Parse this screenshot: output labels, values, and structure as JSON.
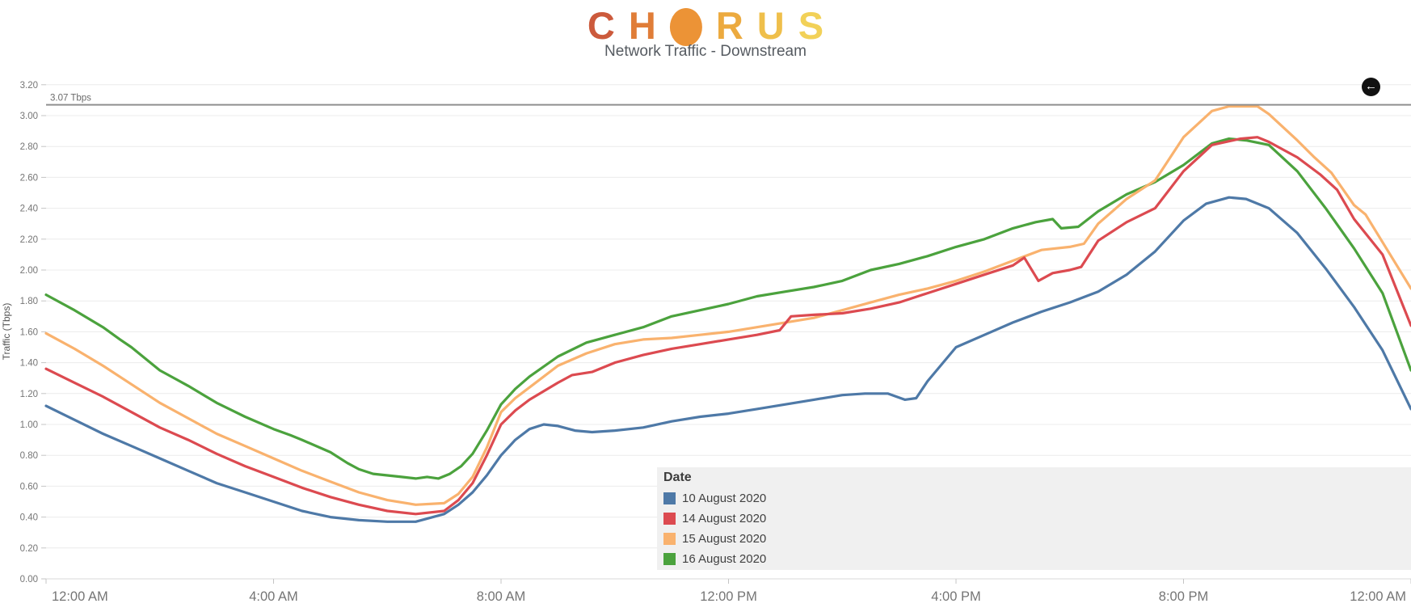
{
  "header": {
    "logo": {
      "name": "chorus-logo",
      "letters": [
        {
          "ch": "C",
          "color": "#cc5a3c"
        },
        {
          "ch": "H",
          "color": "#e07d38"
        },
        {
          "ch": "O",
          "shape": "ellipse",
          "color": "#ec9336"
        },
        {
          "ch": "R",
          "color": "#ecaa3f"
        },
        {
          "ch": "U",
          "color": "#efbf4b"
        },
        {
          "ch": "S",
          "color": "#f2d158"
        }
      ]
    },
    "subtitle": "Network Traffic - Downstream"
  },
  "back_button": {
    "glyph": "←",
    "label": "back"
  },
  "chart_data": {
    "type": "line",
    "title": "Network Traffic - Downstream",
    "xlabel": "",
    "ylabel": "Traffic (Tbps)",
    "ylim": [
      0,
      3.2
    ],
    "xlim_hours": [
      0,
      24
    ],
    "grid": "horizontal",
    "y_ticks": [
      "0.00",
      "0.20",
      "0.40",
      "0.60",
      "0.80",
      "1.00",
      "1.20",
      "1.40",
      "1.60",
      "1.80",
      "2.00",
      "2.20",
      "2.40",
      "2.60",
      "2.80",
      "3.00",
      "3.20"
    ],
    "x_ticks": [
      {
        "t": 0,
        "label": "12:00 AM"
      },
      {
        "t": 4,
        "label": "4:00 AM"
      },
      {
        "t": 8,
        "label": "8:00 AM"
      },
      {
        "t": 12,
        "label": "12:00 PM"
      },
      {
        "t": 16,
        "label": "4:00 PM"
      },
      {
        "t": 20,
        "label": "8:00 PM"
      },
      {
        "t": 24,
        "label": "12:00 AM"
      }
    ],
    "reference_line": {
      "value": 3.07,
      "label": "3.07 Tbps",
      "color": "#8f8f8f"
    },
    "legend_title": "Date",
    "legend_position": "bottom-right",
    "series": [
      {
        "name": "10 August 2020",
        "color": "#4e79a7",
        "points": [
          [
            0,
            1.12
          ],
          [
            0.5,
            1.03
          ],
          [
            1,
            0.94
          ],
          [
            1.5,
            0.86
          ],
          [
            2,
            0.78
          ],
          [
            2.5,
            0.7
          ],
          [
            3,
            0.62
          ],
          [
            3.5,
            0.56
          ],
          [
            4,
            0.5
          ],
          [
            4.5,
            0.44
          ],
          [
            5,
            0.4
          ],
          [
            5.5,
            0.38
          ],
          [
            6,
            0.37
          ],
          [
            6.5,
            0.37
          ],
          [
            7,
            0.42
          ],
          [
            7.25,
            0.48
          ],
          [
            7.5,
            0.56
          ],
          [
            7.75,
            0.67
          ],
          [
            8,
            0.8
          ],
          [
            8.25,
            0.9
          ],
          [
            8.5,
            0.97
          ],
          [
            8.75,
            1.0
          ],
          [
            9,
            0.99
          ],
          [
            9.3,
            0.96
          ],
          [
            9.6,
            0.95
          ],
          [
            10,
            0.96
          ],
          [
            10.5,
            0.98
          ],
          [
            11,
            1.02
          ],
          [
            11.5,
            1.05
          ],
          [
            12,
            1.07
          ],
          [
            12.5,
            1.1
          ],
          [
            13,
            1.13
          ],
          [
            13.5,
            1.16
          ],
          [
            14,
            1.19
          ],
          [
            14.4,
            1.2
          ],
          [
            14.8,
            1.2
          ],
          [
            15.1,
            1.16
          ],
          [
            15.3,
            1.17
          ],
          [
            15.5,
            1.28
          ],
          [
            16,
            1.5
          ],
          [
            16.5,
            1.58
          ],
          [
            17,
            1.66
          ],
          [
            17.5,
            1.73
          ],
          [
            18,
            1.79
          ],
          [
            18.5,
            1.86
          ],
          [
            19,
            1.97
          ],
          [
            19.5,
            2.12
          ],
          [
            20,
            2.32
          ],
          [
            20.4,
            2.43
          ],
          [
            20.8,
            2.47
          ],
          [
            21.1,
            2.46
          ],
          [
            21.5,
            2.4
          ],
          [
            22,
            2.24
          ],
          [
            22.5,
            2.01
          ],
          [
            23,
            1.76
          ],
          [
            23.5,
            1.48
          ],
          [
            24,
            1.1
          ]
        ]
      },
      {
        "name": "14 August 2020",
        "color": "#dc4a50",
        "points": [
          [
            0,
            1.36
          ],
          [
            0.5,
            1.27
          ],
          [
            1,
            1.18
          ],
          [
            1.5,
            1.08
          ],
          [
            2,
            0.98
          ],
          [
            2.5,
            0.9
          ],
          [
            3,
            0.81
          ],
          [
            3.5,
            0.73
          ],
          [
            4,
            0.66
          ],
          [
            4.5,
            0.59
          ],
          [
            5,
            0.53
          ],
          [
            5.5,
            0.48
          ],
          [
            6,
            0.44
          ],
          [
            6.5,
            0.42
          ],
          [
            7,
            0.44
          ],
          [
            7.25,
            0.51
          ],
          [
            7.5,
            0.62
          ],
          [
            7.75,
            0.8
          ],
          [
            8,
            1.0
          ],
          [
            8.25,
            1.09
          ],
          [
            8.5,
            1.16
          ],
          [
            9,
            1.27
          ],
          [
            9.25,
            1.32
          ],
          [
            9.6,
            1.34
          ],
          [
            10,
            1.4
          ],
          [
            10.5,
            1.45
          ],
          [
            11,
            1.49
          ],
          [
            11.5,
            1.52
          ],
          [
            12,
            1.55
          ],
          [
            12.5,
            1.58
          ],
          [
            12.9,
            1.61
          ],
          [
            13.1,
            1.7
          ],
          [
            13.5,
            1.71
          ],
          [
            14,
            1.72
          ],
          [
            14.5,
            1.75
          ],
          [
            15,
            1.79
          ],
          [
            15.5,
            1.85
          ],
          [
            16,
            1.91
          ],
          [
            16.5,
            1.97
          ],
          [
            17,
            2.03
          ],
          [
            17.2,
            2.08
          ],
          [
            17.45,
            1.93
          ],
          [
            17.7,
            1.98
          ],
          [
            18,
            2.0
          ],
          [
            18.2,
            2.02
          ],
          [
            18.5,
            2.19
          ],
          [
            19,
            2.31
          ],
          [
            19.5,
            2.4
          ],
          [
            20,
            2.64
          ],
          [
            20.5,
            2.81
          ],
          [
            21,
            2.85
          ],
          [
            21.3,
            2.86
          ],
          [
            21.5,
            2.83
          ],
          [
            22,
            2.73
          ],
          [
            22.4,
            2.62
          ],
          [
            22.7,
            2.52
          ],
          [
            23,
            2.33
          ],
          [
            23.5,
            2.1
          ],
          [
            24,
            1.64
          ]
        ]
      },
      {
        "name": "15 August 2020",
        "color": "#f9b26e",
        "points": [
          [
            0,
            1.59
          ],
          [
            0.5,
            1.49
          ],
          [
            1,
            1.38
          ],
          [
            1.5,
            1.26
          ],
          [
            2,
            1.14
          ],
          [
            2.5,
            1.04
          ],
          [
            3,
            0.94
          ],
          [
            3.5,
            0.86
          ],
          [
            4,
            0.78
          ],
          [
            4.5,
            0.7
          ],
          [
            5,
            0.63
          ],
          [
            5.5,
            0.56
          ],
          [
            6,
            0.51
          ],
          [
            6.5,
            0.48
          ],
          [
            7,
            0.49
          ],
          [
            7.25,
            0.55
          ],
          [
            7.5,
            0.66
          ],
          [
            7.75,
            0.85
          ],
          [
            8,
            1.08
          ],
          [
            8.25,
            1.17
          ],
          [
            8.5,
            1.24
          ],
          [
            9,
            1.38
          ],
          [
            9.5,
            1.46
          ],
          [
            10,
            1.52
          ],
          [
            10.5,
            1.55
          ],
          [
            11,
            1.56
          ],
          [
            11.5,
            1.58
          ],
          [
            12,
            1.6
          ],
          [
            12.5,
            1.63
          ],
          [
            13,
            1.66
          ],
          [
            13.5,
            1.69
          ],
          [
            14,
            1.74
          ],
          [
            14.5,
            1.79
          ],
          [
            15,
            1.84
          ],
          [
            15.5,
            1.88
          ],
          [
            16,
            1.93
          ],
          [
            16.5,
            1.99
          ],
          [
            17,
            2.06
          ],
          [
            17.5,
            2.13
          ],
          [
            18,
            2.15
          ],
          [
            18.25,
            2.17
          ],
          [
            18.5,
            2.3
          ],
          [
            19,
            2.46
          ],
          [
            19.5,
            2.58
          ],
          [
            20,
            2.86
          ],
          [
            20.5,
            3.03
          ],
          [
            20.8,
            3.06
          ],
          [
            21.3,
            3.06
          ],
          [
            21.5,
            3.01
          ],
          [
            22,
            2.84
          ],
          [
            22.3,
            2.73
          ],
          [
            22.6,
            2.63
          ],
          [
            23,
            2.42
          ],
          [
            23.2,
            2.36
          ],
          [
            23.5,
            2.18
          ],
          [
            24,
            1.88
          ]
        ]
      },
      {
        "name": "16 August 2020",
        "color": "#4ba23d",
        "points": [
          [
            0,
            1.84
          ],
          [
            0.5,
            1.74
          ],
          [
            1,
            1.63
          ],
          [
            1.3,
            1.55
          ],
          [
            1.5,
            1.5
          ],
          [
            2,
            1.35
          ],
          [
            2.3,
            1.29
          ],
          [
            2.5,
            1.25
          ],
          [
            3,
            1.14
          ],
          [
            3.5,
            1.05
          ],
          [
            4,
            0.97
          ],
          [
            4.3,
            0.93
          ],
          [
            4.5,
            0.9
          ],
          [
            5,
            0.82
          ],
          [
            5.3,
            0.75
          ],
          [
            5.5,
            0.71
          ],
          [
            5.75,
            0.68
          ],
          [
            6,
            0.67
          ],
          [
            6.25,
            0.66
          ],
          [
            6.5,
            0.65
          ],
          [
            6.7,
            0.66
          ],
          [
            6.9,
            0.65
          ],
          [
            7.1,
            0.68
          ],
          [
            7.3,
            0.73
          ],
          [
            7.5,
            0.81
          ],
          [
            7.75,
            0.96
          ],
          [
            8,
            1.13
          ],
          [
            8.25,
            1.23
          ],
          [
            8.5,
            1.31
          ],
          [
            9,
            1.44
          ],
          [
            9.5,
            1.53
          ],
          [
            10,
            1.58
          ],
          [
            10.5,
            1.63
          ],
          [
            11,
            1.7
          ],
          [
            11.5,
            1.74
          ],
          [
            12,
            1.78
          ],
          [
            12.5,
            1.83
          ],
          [
            13,
            1.86
          ],
          [
            13.5,
            1.89
          ],
          [
            14,
            1.93
          ],
          [
            14.5,
            2.0
          ],
          [
            15,
            2.04
          ],
          [
            15.5,
            2.09
          ],
          [
            16,
            2.15
          ],
          [
            16.5,
            2.2
          ],
          [
            17,
            2.27
          ],
          [
            17.4,
            2.31
          ],
          [
            17.7,
            2.33
          ],
          [
            17.85,
            2.27
          ],
          [
            18.15,
            2.28
          ],
          [
            18.5,
            2.38
          ],
          [
            19,
            2.49
          ],
          [
            19.5,
            2.57
          ],
          [
            20,
            2.68
          ],
          [
            20.5,
            2.82
          ],
          [
            20.8,
            2.85
          ],
          [
            21.1,
            2.84
          ],
          [
            21.5,
            2.81
          ],
          [
            22,
            2.64
          ],
          [
            22.5,
            2.4
          ],
          [
            23,
            2.14
          ],
          [
            23.5,
            1.85
          ],
          [
            24,
            1.35
          ]
        ]
      }
    ],
    "style": {
      "grid_color": "#ececec",
      "axis_line_color": "#d8d8d8",
      "tick_color": "#c4c4c4",
      "tick_label_color": "#757575",
      "ref_label_color": "#6a6a6a",
      "line_width": 3.2
    }
  }
}
